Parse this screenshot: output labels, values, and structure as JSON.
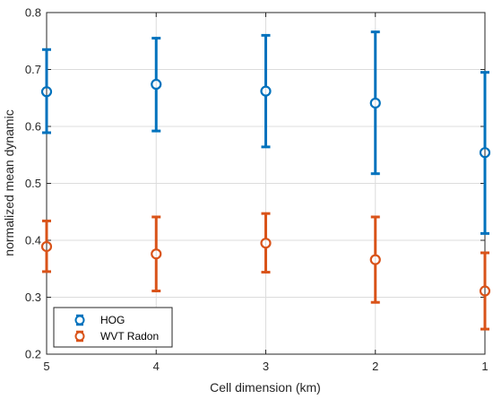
{
  "chart_data": {
    "type": "errorbar",
    "xlabel": "Cell dimension (km)",
    "ylabel": "normalized mean dynamic",
    "categories": [
      "5",
      "4",
      "3",
      "2",
      "1"
    ],
    "x": [
      5,
      4,
      3,
      2,
      1
    ],
    "x_reversed": true,
    "xlim": [
      5,
      1
    ],
    "ylim": [
      0.2,
      0.8
    ],
    "yticks": [
      "0.2",
      "0.3",
      "0.4",
      "0.5",
      "0.6",
      "0.7",
      "0.8"
    ],
    "ytick_values": [
      0.2,
      0.3,
      0.4,
      0.5,
      0.6,
      0.7,
      0.8
    ],
    "grid": true,
    "legend_placement": "bottom-left",
    "series": [
      {
        "name": "HOG",
        "color": "#0072BD",
        "marker": "circle",
        "values": [
          0.661,
          0.674,
          0.662,
          0.641,
          0.554
        ],
        "lower": [
          0.589,
          0.592,
          0.564,
          0.517,
          0.412
        ],
        "upper": [
          0.735,
          0.755,
          0.76,
          0.766,
          0.695
        ]
      },
      {
        "name": "WVT Radon",
        "color": "#D95319",
        "marker": "circle",
        "values": [
          0.389,
          0.376,
          0.395,
          0.366,
          0.311
        ],
        "lower": [
          0.345,
          0.311,
          0.344,
          0.291,
          0.244
        ],
        "upper": [
          0.434,
          0.441,
          0.447,
          0.441,
          0.378
        ]
      }
    ]
  }
}
